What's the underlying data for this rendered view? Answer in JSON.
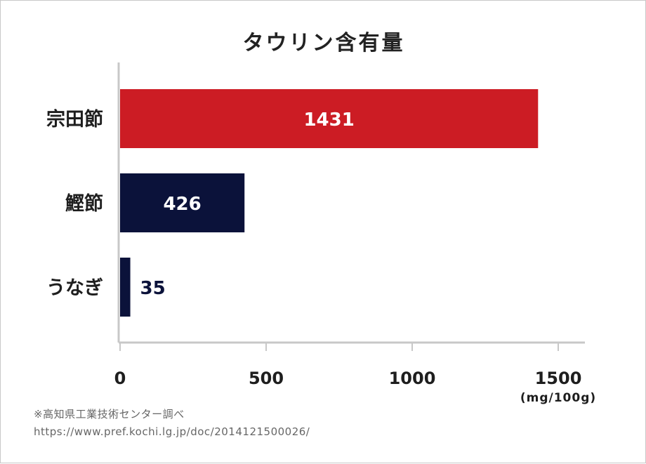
{
  "chart_data": {
    "type": "bar",
    "orientation": "horizontal",
    "title": "タウリン含有量",
    "categories": [
      "宗田節",
      "鰹節",
      "うなぎ"
    ],
    "values": [
      1431,
      426,
      35
    ],
    "value_labels": [
      "1431",
      "426",
      "35"
    ],
    "bar_colors": [
      "#cc1c24",
      "#0b123a",
      "#0b123a"
    ],
    "xlim": [
      0,
      1600
    ],
    "xticks": [
      0,
      500,
      1000,
      1500
    ],
    "xtick_labels": [
      "0",
      "500",
      "1000",
      "1500"
    ],
    "unit": "(mg/100g)",
    "grid": false
  },
  "source": {
    "note": "※高知県工業技術センター調べ",
    "url": "https://www.pref.kochi.lg.jp/doc/2014121500026/"
  },
  "colors": {
    "axis": "#c8c8c8",
    "text": "#1e1e1e",
    "inside_label": "#ffffff",
    "outside_label": "#0b123a"
  }
}
